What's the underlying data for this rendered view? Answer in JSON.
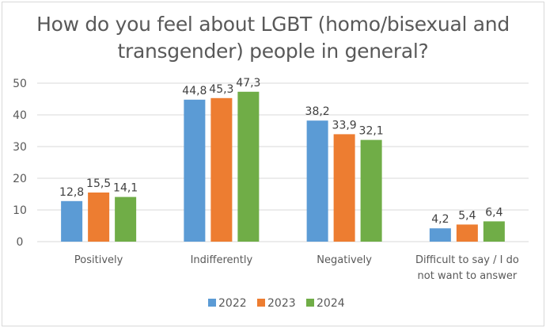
{
  "chart_data": {
    "type": "bar",
    "title": "How do you feel about LGBT (homo/bisexual and transgender) people in general?",
    "title_lines": [
      "How do you feel about LGBT (homo/bisexual and",
      "transgender) people in general?"
    ],
    "categories": [
      "Positively",
      "Indifferently",
      "Negatively",
      "Difficult to say / I do not want to answer"
    ],
    "category_lines": [
      [
        "Positively"
      ],
      [
        "Indifferently"
      ],
      [
        "Negatively"
      ],
      [
        "Difficult to say / I do",
        "not want to answer"
      ]
    ],
    "series": [
      {
        "name": "2022",
        "color": "#5b9bd5",
        "values": [
          12.8,
          44.8,
          38.2,
          4.2
        ],
        "labels": [
          "12,8",
          "44,8",
          "38,2",
          "4,2"
        ]
      },
      {
        "name": "2023",
        "color": "#ed7d31",
        "values": [
          15.5,
          45.3,
          33.9,
          5.4
        ],
        "labels": [
          "15,5",
          "45,3",
          "33,9",
          "5,4"
        ]
      },
      {
        "name": "2024",
        "color": "#70ad47",
        "values": [
          14.1,
          47.3,
          32.1,
          6.4
        ],
        "labels": [
          "14,1",
          "47,3",
          "32,1",
          "6,4"
        ]
      }
    ],
    "xlabel": "",
    "ylabel": "",
    "ylim": [
      0,
      50
    ],
    "yticks": [
      0,
      10,
      20,
      30,
      40,
      50
    ],
    "grid": true,
    "legend_position": "bottom"
  }
}
